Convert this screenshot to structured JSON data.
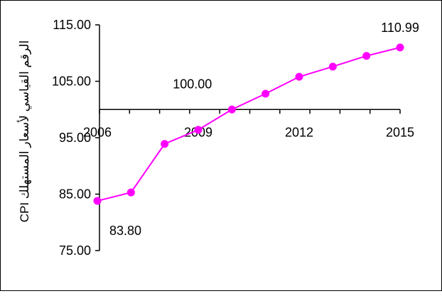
{
  "chart_data": {
    "type": "line",
    "title": "",
    "xlabel": "",
    "ylabel": "الرقم القياسي لأسعار المستهلك CPI",
    "x_tick_labels": [
      "2006",
      "2009",
      "2012",
      "2015"
    ],
    "x": [
      2006,
      2007,
      2008,
      2009,
      2010,
      2011,
      2012,
      2013,
      2014,
      2015
    ],
    "series": [
      {
        "values": [
          83.8,
          85.3,
          93.9,
          96.4,
          100.0,
          102.8,
          105.8,
          107.6,
          109.5,
          110.99
        ],
        "color": "#ff00ff"
      }
    ],
    "data_labels": [
      {
        "index": 0,
        "text": "83.80"
      },
      {
        "index": 4,
        "text": "100.00"
      },
      {
        "index": 9,
        "text": "110.99"
      }
    ],
    "ylim": [
      75,
      115
    ],
    "yticks": [
      75,
      85,
      95,
      105,
      115
    ],
    "ytick_labels": [
      "75.00",
      "85.00",
      "95.00",
      "105.00",
      "115.00"
    ],
    "x_axis_crosses_at": 100,
    "grid": false,
    "legend": "none",
    "marker": "circle"
  }
}
